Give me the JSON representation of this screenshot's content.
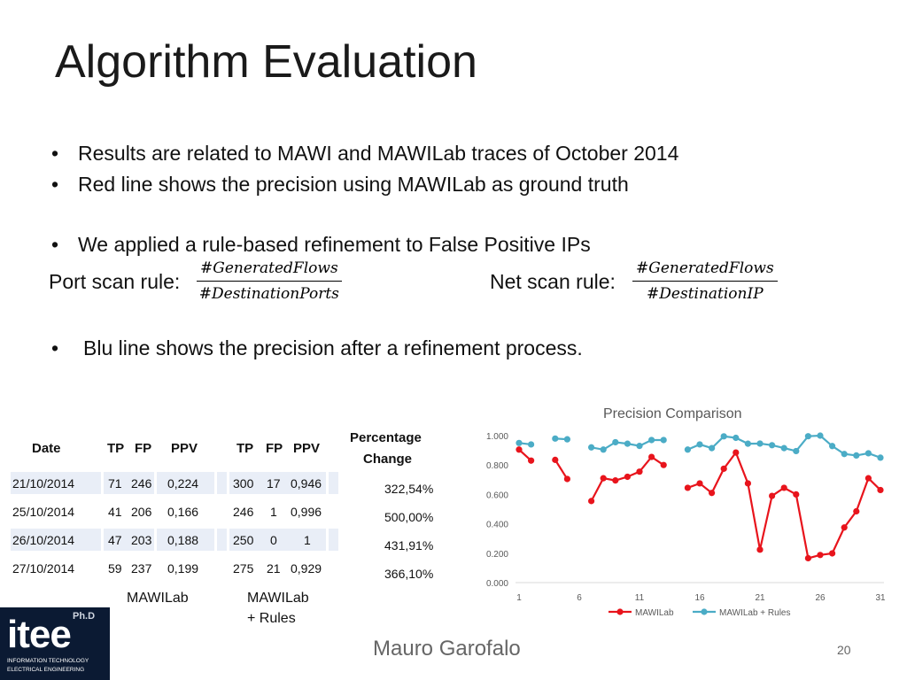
{
  "title": "Algorithm Evaluation",
  "bullets": [
    "Results are related to MAWI and MAWILab traces of October 2014",
    "Red line shows the precision using MAWILab as ground truth",
    "We applied a rule-based refinement to False Positive IPs",
    "Blu line shows the precision after a refinement process."
  ],
  "rules": {
    "port_label": "Port scan rule:",
    "port_num": "#GeneratedFlows",
    "port_den": "#DestinationPorts",
    "net_label": "Net scan rule:",
    "net_num": "#GeneratedFlows",
    "net_den": "#DestinationIP"
  },
  "table": {
    "headers": {
      "date": "Date",
      "tp1": "TP",
      "fp1": "FP",
      "ppv1": "PPV",
      "tp2": "TP",
      "fp2": "FP",
      "ppv2": "PPV",
      "pct1": "Percentage",
      "pct2": "Change"
    },
    "rows": [
      {
        "date": "21/10/2014",
        "tp1": "71",
        "fp1": "246",
        "ppv1": "0,224",
        "tp2": "300",
        "fp2": "17",
        "ppv2": "0,946",
        "pct": "322,54%"
      },
      {
        "date": "25/10/2014",
        "tp1": "41",
        "fp1": "206",
        "ppv1": "0,166",
        "tp2": "246",
        "fp2": "1",
        "ppv2": "0,996",
        "pct": "500,00%"
      },
      {
        "date": "26/10/2014",
        "tp1": "47",
        "fp1": "203",
        "ppv1": "0,188",
        "tp2": "250",
        "fp2": "0",
        "ppv2": "1",
        "pct": "431,91%"
      },
      {
        "date": "27/10/2014",
        "tp1": "59",
        "fp1": "237",
        "ppv1": "0,199",
        "tp2": "275",
        "fp2": "21",
        "ppv2": "0,929",
        "pct": "366,10%"
      }
    ],
    "group_left": "MAWILab",
    "group_right_1": "MAWILab",
    "group_right_2": "+ Rules"
  },
  "chart_data": {
    "type": "line",
    "title": "Precision Comparison",
    "y_ticks": [
      "1.000",
      "0.800",
      "0.600",
      "0.400",
      "0.200",
      "0.000"
    ],
    "x_ticks": [
      "1",
      "6",
      "11",
      "16",
      "21",
      "26",
      "31"
    ],
    "ylim": [
      0,
      1
    ],
    "xlim": [
      1,
      31
    ],
    "grid": false,
    "legend_position": "bottom",
    "series": [
      {
        "name": "MAWILab",
        "color": "#e8141c",
        "points": [
          [
            1,
            0.905
          ],
          [
            2,
            0.83
          ],
          null,
          [
            4,
            0.835
          ],
          [
            5,
            0.705
          ],
          null,
          [
            7,
            0.555
          ],
          [
            8,
            0.71
          ],
          [
            9,
            0.695
          ],
          [
            10,
            0.72
          ],
          [
            11,
            0.755
          ],
          [
            12,
            0.855
          ],
          [
            13,
            0.8
          ],
          null,
          [
            15,
            0.645
          ],
          [
            16,
            0.675
          ],
          [
            17,
            0.61
          ],
          [
            18,
            0.775
          ],
          [
            19,
            0.885
          ],
          [
            20,
            0.675
          ],
          [
            21,
            0.224
          ],
          [
            22,
            0.59
          ],
          [
            23,
            0.645
          ],
          [
            24,
            0.6
          ],
          [
            25,
            0.166
          ],
          [
            26,
            0.188
          ],
          [
            27,
            0.199
          ],
          [
            28,
            0.375
          ],
          [
            29,
            0.485
          ],
          [
            30,
            0.71
          ],
          [
            31,
            0.63
          ]
        ]
      },
      {
        "name": "MAWILab + Rules",
        "color": "#4bacc6",
        "points": [
          [
            1,
            0.95
          ],
          [
            2,
            0.94
          ],
          null,
          [
            4,
            0.98
          ],
          [
            5,
            0.975
          ],
          null,
          [
            7,
            0.92
          ],
          [
            8,
            0.905
          ],
          [
            9,
            0.955
          ],
          [
            10,
            0.945
          ],
          [
            11,
            0.93
          ],
          [
            12,
            0.97
          ],
          [
            13,
            0.97
          ],
          null,
          [
            15,
            0.905
          ],
          [
            16,
            0.94
          ],
          [
            17,
            0.915
          ],
          [
            18,
            0.995
          ],
          [
            19,
            0.985
          ],
          [
            20,
            0.945
          ],
          [
            21,
            0.946
          ],
          [
            22,
            0.935
          ],
          [
            23,
            0.915
          ],
          [
            24,
            0.895
          ],
          [
            25,
            0.996
          ],
          [
            26,
            1.0
          ],
          [
            27,
            0.929
          ],
          [
            28,
            0.875
          ],
          [
            29,
            0.865
          ],
          [
            30,
            0.88
          ],
          [
            31,
            0.85
          ]
        ]
      }
    ]
  },
  "footer": {
    "author": "Mauro Garofalo",
    "page": "20"
  },
  "logo": {
    "badge": "Ph.D",
    "big": "itee",
    "line1": "INFORMATION TECHNOLOGY",
    "line2": "ELECTRICAL ENGINEERING"
  }
}
